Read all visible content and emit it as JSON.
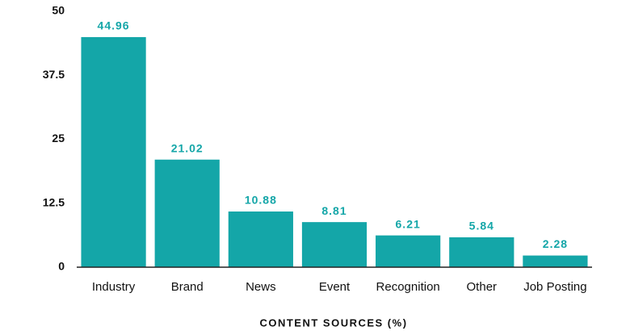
{
  "chart_data": {
    "type": "bar",
    "x_label": "CONTENT SOURCES (%)",
    "categories": [
      "Industry",
      "Brand",
      "News",
      "Event",
      "Recognition",
      "Other",
      "Job Posting"
    ],
    "values": [
      44.96,
      21.02,
      10.88,
      8.81,
      6.21,
      5.84,
      2.28
    ],
    "color": "#14a6a8",
    "ylim": [
      0,
      50
    ],
    "yticks": [
      0,
      12.5,
      25,
      37.5,
      50
    ],
    "grid": false
  }
}
